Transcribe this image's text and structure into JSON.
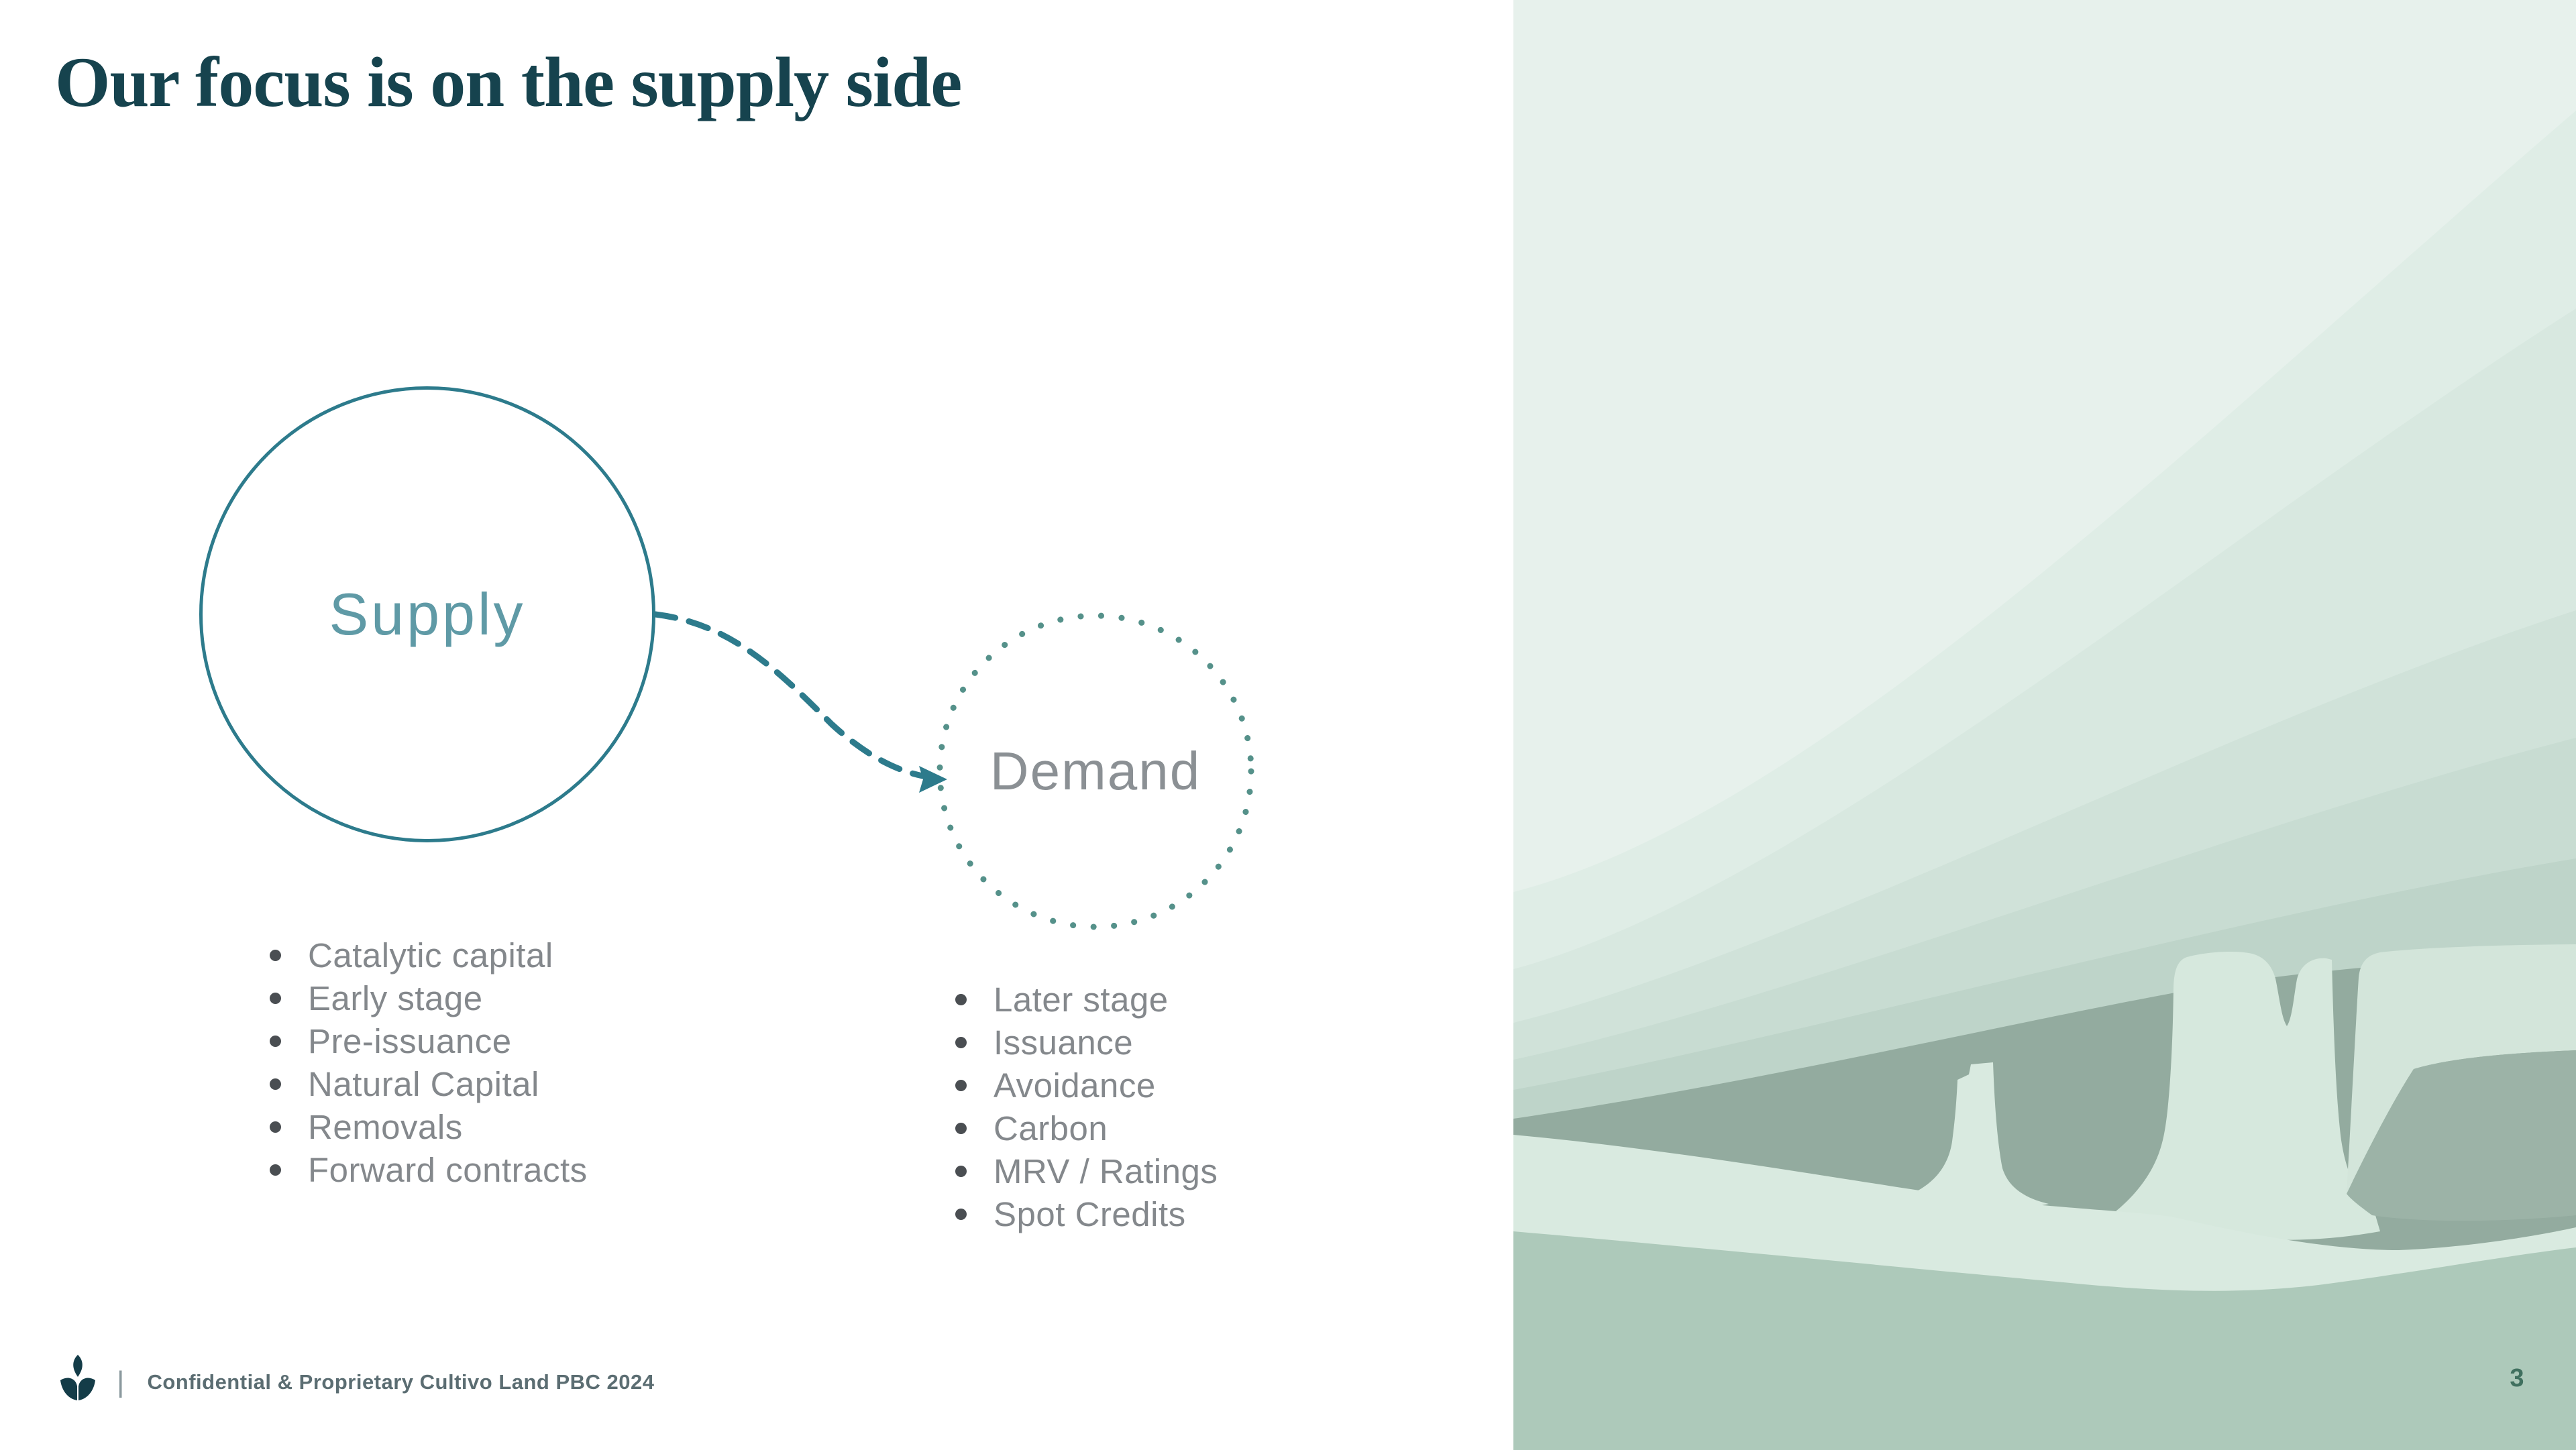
{
  "slide": {
    "title": "Our focus is on the supply side",
    "page_number": "3",
    "footer": {
      "logo_icon": "cultivo-sprout-logo",
      "separator": "|",
      "text": "Confidential & Proprietary Cultivo Land PBC 2024"
    },
    "diagram": {
      "connector": "dashed-curved-arrow",
      "supply": {
        "label": "Supply",
        "items": [
          "Catalytic capital",
          "Early stage",
          "Pre-issuance",
          "Natural Capital",
          "Removals",
          "Forward contracts"
        ]
      },
      "demand": {
        "label": "Demand",
        "items": [
          "Later stage",
          "Issuance",
          "Avoidance",
          "Carbon",
          "MRV / Ratings",
          "Spot Credits"
        ]
      }
    },
    "colors": {
      "title_teal": "#16434e",
      "circle_stroke_teal": "#2d7b8c",
      "supply_label": "#5f9aa6",
      "demand_label": "#8b9094",
      "demand_dots": "#55918a",
      "bullet_text": "#84888c",
      "bullet_dot": "#4a4e52",
      "footer_text": "#5b6d72",
      "logo_teal": "#143c48",
      "page_number_green": "#40705f",
      "landscape_pale": "#e7f1ec",
      "landscape_sage": "#adc9ba",
      "landscape_dark_band": "#93ab9f"
    }
  }
}
